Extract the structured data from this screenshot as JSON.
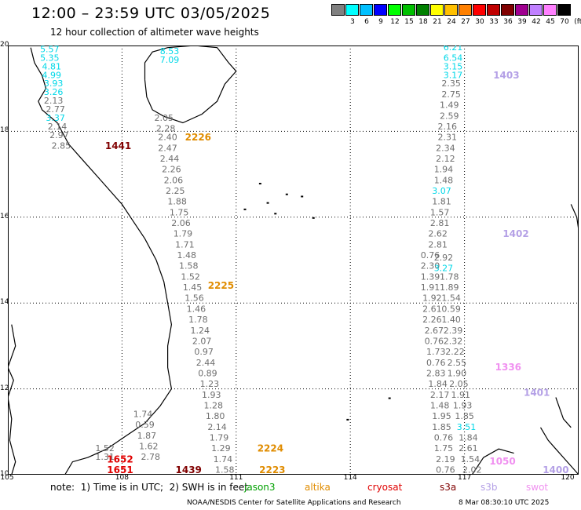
{
  "header": {
    "title": "12:00 – 23:59 UTC 03/05/2025",
    "subtitle": "12 hour collection of altimeter wave heights"
  },
  "color_scale": {
    "unit": "(ft)",
    "bins": [
      {
        "label": "",
        "color": "#808080"
      },
      {
        "label": "3",
        "color": "#00ffff"
      },
      {
        "label": "6",
        "color": "#00c0ff"
      },
      {
        "label": "9",
        "color": "#0000ff"
      },
      {
        "label": "12",
        "color": "#00ff00"
      },
      {
        "label": "15",
        "color": "#00c000"
      },
      {
        "label": "18",
        "color": "#008000"
      },
      {
        "label": "21",
        "color": "#ffff00"
      },
      {
        "label": "24",
        "color": "#ffc000"
      },
      {
        "label": "27",
        "color": "#ff8000"
      },
      {
        "label": "30",
        "color": "#ff0000"
      },
      {
        "label": "33",
        "color": "#c00000"
      },
      {
        "label": "36",
        "color": "#800000"
      },
      {
        "label": "39",
        "color": "#a00090"
      },
      {
        "label": "42",
        "color": "#c080ff"
      },
      {
        "label": "45",
        "color": "#ff80ff"
      },
      {
        "label": "70",
        "color": "#000000"
      }
    ]
  },
  "map": {
    "lat_labels": [
      "20",
      "18",
      "16",
      "14",
      "12",
      "10"
    ],
    "lon_labels": [
      "105",
      "108",
      "111",
      "114",
      "117",
      "120"
    ],
    "lat_range": [
      10,
      20
    ],
    "lon_range": [
      105,
      120
    ]
  },
  "colors": {
    "gray": "#6e6e6e",
    "cyan": "#00d8e8",
    "orange": "#e08c00",
    "darkred": "#800000",
    "red": "#e00000",
    "lavender": "#b4a0e6",
    "pink": "#f090f0",
    "green": "#00a000"
  },
  "observations": [
    {
      "lon": 106.1,
      "lat": 19.9,
      "v": "5.57",
      "c": "cyan"
    },
    {
      "lon": 106.1,
      "lat": 19.7,
      "v": "5.35",
      "c": "cyan"
    },
    {
      "lon": 106.15,
      "lat": 19.5,
      "v": "4.81",
      "c": "cyan"
    },
    {
      "lon": 106.15,
      "lat": 19.3,
      "v": "4.99",
      "c": "cyan"
    },
    {
      "lon": 106.2,
      "lat": 19.1,
      "v": "3.93",
      "c": "cyan"
    },
    {
      "lon": 106.2,
      "lat": 18.9,
      "v": "3.26",
      "c": "cyan"
    },
    {
      "lon": 106.2,
      "lat": 18.7,
      "v": "2.13",
      "c": "gray"
    },
    {
      "lon": 106.25,
      "lat": 18.5,
      "v": "2.77",
      "c": "gray"
    },
    {
      "lon": 106.25,
      "lat": 18.3,
      "v": "3.37",
      "c": "cyan"
    },
    {
      "lon": 106.3,
      "lat": 18.1,
      "v": "2.14",
      "c": "gray"
    },
    {
      "lon": 106.35,
      "lat": 17.9,
      "v": "2.97",
      "c": "gray"
    },
    {
      "lon": 106.4,
      "lat": 17.65,
      "v": "2.85",
      "c": "gray"
    },
    {
      "lon": 109.25,
      "lat": 19.85,
      "v": "8.53",
      "c": "cyan"
    },
    {
      "lon": 109.25,
      "lat": 19.65,
      "v": "7.09",
      "c": "cyan"
    },
    {
      "lon": 109.1,
      "lat": 18.3,
      "v": "2.05",
      "c": "gray"
    },
    {
      "lon": 109.15,
      "lat": 18.05,
      "v": "2.28",
      "c": "gray"
    },
    {
      "lon": 109.2,
      "lat": 17.85,
      "v": "2.40",
      "c": "gray"
    },
    {
      "lon": 109.2,
      "lat": 17.6,
      "v": "2.47",
      "c": "gray"
    },
    {
      "lon": 109.25,
      "lat": 17.35,
      "v": "2.44",
      "c": "gray"
    },
    {
      "lon": 109.3,
      "lat": 17.1,
      "v": "2.26",
      "c": "gray"
    },
    {
      "lon": 109.35,
      "lat": 16.85,
      "v": "2.06",
      "c": "gray"
    },
    {
      "lon": 109.4,
      "lat": 16.6,
      "v": "2.25",
      "c": "gray"
    },
    {
      "lon": 109.45,
      "lat": 16.35,
      "v": "1.88",
      "c": "gray"
    },
    {
      "lon": 109.5,
      "lat": 16.1,
      "v": "1.75",
      "c": "gray"
    },
    {
      "lon": 109.55,
      "lat": 15.85,
      "v": "2.06",
      "c": "gray"
    },
    {
      "lon": 109.6,
      "lat": 15.6,
      "v": "1.79",
      "c": "gray"
    },
    {
      "lon": 109.65,
      "lat": 15.35,
      "v": "1.71",
      "c": "gray"
    },
    {
      "lon": 109.7,
      "lat": 15.1,
      "v": "1.48",
      "c": "gray"
    },
    {
      "lon": 109.75,
      "lat": 14.85,
      "v": "1.58",
      "c": "gray"
    },
    {
      "lon": 109.8,
      "lat": 14.6,
      "v": "1.52",
      "c": "gray"
    },
    {
      "lon": 109.85,
      "lat": 14.35,
      "v": "1.45",
      "c": "gray"
    },
    {
      "lon": 109.9,
      "lat": 14.1,
      "v": "1.56",
      "c": "gray"
    },
    {
      "lon": 109.95,
      "lat": 13.85,
      "v": "1.46",
      "c": "gray"
    },
    {
      "lon": 110.0,
      "lat": 13.6,
      "v": "1.78",
      "c": "gray"
    },
    {
      "lon": 110.05,
      "lat": 13.35,
      "v": "1.24",
      "c": "gray"
    },
    {
      "lon": 110.1,
      "lat": 13.1,
      "v": "2.07",
      "c": "gray"
    },
    {
      "lon": 110.15,
      "lat": 12.85,
      "v": "0.97",
      "c": "gray"
    },
    {
      "lon": 110.2,
      "lat": 12.6,
      "v": "2.44",
      "c": "gray"
    },
    {
      "lon": 110.25,
      "lat": 12.35,
      "v": "0.89",
      "c": "gray"
    },
    {
      "lon": 110.3,
      "lat": 12.1,
      "v": "1.23",
      "c": "gray"
    },
    {
      "lon": 110.35,
      "lat": 11.85,
      "v": "1.93",
      "c": "gray"
    },
    {
      "lon": 110.4,
      "lat": 11.6,
      "v": "1.28",
      "c": "gray"
    },
    {
      "lon": 110.45,
      "lat": 11.35,
      "v": "1.80",
      "c": "gray"
    },
    {
      "lon": 110.5,
      "lat": 11.1,
      "v": "2.14",
      "c": "gray"
    },
    {
      "lon": 110.55,
      "lat": 10.85,
      "v": "1.79",
      "c": "gray"
    },
    {
      "lon": 110.6,
      "lat": 10.6,
      "v": "1.29",
      "c": "gray"
    },
    {
      "lon": 110.65,
      "lat": 10.35,
      "v": "1.74",
      "c": "gray"
    },
    {
      "lon": 110.7,
      "lat": 10.1,
      "v": "1.58",
      "c": "gray"
    },
    {
      "lon": 108.55,
      "lat": 11.4,
      "v": "1.74",
      "c": "gray"
    },
    {
      "lon": 108.6,
      "lat": 11.15,
      "v": "0.59",
      "c": "gray"
    },
    {
      "lon": 108.65,
      "lat": 10.9,
      "v": "1.87",
      "c": "gray"
    },
    {
      "lon": 108.7,
      "lat": 10.65,
      "v": "1.62",
      "c": "gray"
    },
    {
      "lon": 108.75,
      "lat": 10.4,
      "v": "2.78",
      "c": "gray"
    },
    {
      "lon": 107.55,
      "lat": 10.6,
      "v": "1.52",
      "c": "gray"
    },
    {
      "lon": 107.55,
      "lat": 10.4,
      "v": "1.31",
      "c": "gray"
    },
    {
      "lon": 116.7,
      "lat": 19.95,
      "v": "6.21",
      "c": "cyan"
    },
    {
      "lon": 116.7,
      "lat": 19.7,
      "v": "6.54",
      "c": "cyan"
    },
    {
      "lon": 116.7,
      "lat": 19.5,
      "v": "3.15",
      "c": "cyan"
    },
    {
      "lon": 116.7,
      "lat": 19.3,
      "v": "3.17",
      "c": "cyan"
    },
    {
      "lon": 116.65,
      "lat": 19.1,
      "v": "2.35",
      "c": "gray"
    },
    {
      "lon": 116.65,
      "lat": 18.85,
      "v": "2.75",
      "c": "gray"
    },
    {
      "lon": 116.6,
      "lat": 18.6,
      "v": "1.49",
      "c": "gray"
    },
    {
      "lon": 116.6,
      "lat": 18.35,
      "v": "2.59",
      "c": "gray"
    },
    {
      "lon": 116.55,
      "lat": 18.1,
      "v": "2.16",
      "c": "gray"
    },
    {
      "lon": 116.55,
      "lat": 17.85,
      "v": "2.31",
      "c": "gray"
    },
    {
      "lon": 116.5,
      "lat": 17.6,
      "v": "2.34",
      "c": "gray"
    },
    {
      "lon": 116.5,
      "lat": 17.35,
      "v": "2.12",
      "c": "gray"
    },
    {
      "lon": 116.45,
      "lat": 17.1,
      "v": "1.94",
      "c": "gray"
    },
    {
      "lon": 116.45,
      "lat": 16.85,
      "v": "1.48",
      "c": "gray"
    },
    {
      "lon": 116.4,
      "lat": 16.6,
      "v": "3.07",
      "c": "cyan"
    },
    {
      "lon": 116.4,
      "lat": 16.35,
      "v": "1.81",
      "c": "gray"
    },
    {
      "lon": 116.35,
      "lat": 16.1,
      "v": "1.57",
      "c": "gray"
    },
    {
      "lon": 116.35,
      "lat": 15.85,
      "v": "2.81",
      "c": "gray"
    },
    {
      "lon": 116.3,
      "lat": 15.6,
      "v": "2.62",
      "c": "gray"
    },
    {
      "lon": 116.3,
      "lat": 15.35,
      "v": "2.81",
      "c": "gray"
    },
    {
      "lon": 116.1,
      "lat": 15.1,
      "v": "0.76",
      "c": "gray"
    },
    {
      "lon": 116.45,
      "lat": 15.05,
      "v": "2.92",
      "c": "gray"
    },
    {
      "lon": 116.1,
      "lat": 14.85,
      "v": "2.30",
      "c": "gray"
    },
    {
      "lon": 116.45,
      "lat": 14.8,
      "v": "3.27",
      "c": "cyan"
    },
    {
      "lon": 116.1,
      "lat": 14.6,
      "v": "1.39",
      "c": "gray"
    },
    {
      "lon": 116.6,
      "lat": 14.6,
      "v": "1.78",
      "c": "gray"
    },
    {
      "lon": 116.1,
      "lat": 14.35,
      "v": "1.91",
      "c": "gray"
    },
    {
      "lon": 116.6,
      "lat": 14.35,
      "v": "1.89",
      "c": "gray"
    },
    {
      "lon": 116.15,
      "lat": 14.1,
      "v": "1.92",
      "c": "gray"
    },
    {
      "lon": 116.65,
      "lat": 14.1,
      "v": "1.54",
      "c": "gray"
    },
    {
      "lon": 116.15,
      "lat": 13.85,
      "v": "2.61",
      "c": "gray"
    },
    {
      "lon": 116.65,
      "lat": 13.85,
      "v": "0.59",
      "c": "gray"
    },
    {
      "lon": 116.15,
      "lat": 13.6,
      "v": "2.26",
      "c": "gray"
    },
    {
      "lon": 116.65,
      "lat": 13.6,
      "v": "1.40",
      "c": "gray"
    },
    {
      "lon": 116.2,
      "lat": 13.35,
      "v": "2.67",
      "c": "gray"
    },
    {
      "lon": 116.7,
      "lat": 13.35,
      "v": "2.39",
      "c": "gray"
    },
    {
      "lon": 116.2,
      "lat": 13.1,
      "v": "0.76",
      "c": "gray"
    },
    {
      "lon": 116.7,
      "lat": 13.1,
      "v": "2.32",
      "c": "gray"
    },
    {
      "lon": 116.25,
      "lat": 12.85,
      "v": "1.73",
      "c": "gray"
    },
    {
      "lon": 116.75,
      "lat": 12.85,
      "v": "2.22",
      "c": "gray"
    },
    {
      "lon": 116.25,
      "lat": 12.6,
      "v": "0.76",
      "c": "gray"
    },
    {
      "lon": 116.8,
      "lat": 12.6,
      "v": "2.55",
      "c": "gray"
    },
    {
      "lon": 116.25,
      "lat": 12.35,
      "v": "2.83",
      "c": "gray"
    },
    {
      "lon": 116.8,
      "lat": 12.35,
      "v": "1.90",
      "c": "gray"
    },
    {
      "lon": 116.3,
      "lat": 12.1,
      "v": "1.84",
      "c": "gray"
    },
    {
      "lon": 116.85,
      "lat": 12.1,
      "v": "2.05",
      "c": "gray"
    },
    {
      "lon": 116.35,
      "lat": 11.85,
      "v": "2.17",
      "c": "gray"
    },
    {
      "lon": 116.9,
      "lat": 11.85,
      "v": "1.91",
      "c": "gray"
    },
    {
      "lon": 116.35,
      "lat": 11.6,
      "v": "1.48",
      "c": "gray"
    },
    {
      "lon": 116.95,
      "lat": 11.6,
      "v": "1.93",
      "c": "gray"
    },
    {
      "lon": 116.4,
      "lat": 11.35,
      "v": "1.95",
      "c": "gray"
    },
    {
      "lon": 117.0,
      "lat": 11.35,
      "v": "1.85",
      "c": "gray"
    },
    {
      "lon": 116.4,
      "lat": 11.1,
      "v": "1.85",
      "c": "gray"
    },
    {
      "lon": 117.05,
      "lat": 11.1,
      "v": "3.51",
      "c": "cyan"
    },
    {
      "lon": 116.45,
      "lat": 10.85,
      "v": "0.76",
      "c": "gray"
    },
    {
      "lon": 117.1,
      "lat": 10.85,
      "v": "1.84",
      "c": "gray"
    },
    {
      "lon": 116.45,
      "lat": 10.6,
      "v": "1.75",
      "c": "gray"
    },
    {
      "lon": 117.1,
      "lat": 10.6,
      "v": "2.61",
      "c": "gray"
    },
    {
      "lon": 116.5,
      "lat": 10.35,
      "v": "2.19",
      "c": "gray"
    },
    {
      "lon": 117.15,
      "lat": 10.35,
      "v": "1.54",
      "c": "gray"
    },
    {
      "lon": 116.5,
      "lat": 10.1,
      "v": "0.76",
      "c": "gray"
    },
    {
      "lon": 117.2,
      "lat": 10.1,
      "v": "2.02",
      "c": "gray"
    }
  ],
  "revolutions": [
    {
      "lon": 107.9,
      "lat": 17.65,
      "v": "1441",
      "c": "darkred"
    },
    {
      "lon": 110.0,
      "lat": 17.85,
      "v": "2226",
      "c": "orange"
    },
    {
      "lon": 110.6,
      "lat": 14.4,
      "v": "2225",
      "c": "orange"
    },
    {
      "lon": 111.9,
      "lat": 10.6,
      "v": "2224",
      "c": "orange"
    },
    {
      "lon": 111.95,
      "lat": 10.1,
      "v": "2223",
      "c": "orange"
    },
    {
      "lon": 107.95,
      "lat": 10.35,
      "v": "1652",
      "c": "red"
    },
    {
      "lon": 107.95,
      "lat": 10.1,
      "v": "1651",
      "c": "red"
    },
    {
      "lon": 109.75,
      "lat": 10.1,
      "v": "1439",
      "c": "darkred"
    },
    {
      "lon": 118.1,
      "lat": 19.3,
      "v": "1403",
      "c": "lavender"
    },
    {
      "lon": 118.35,
      "lat": 15.6,
      "v": "1402",
      "c": "lavender"
    },
    {
      "lon": 118.15,
      "lat": 12.5,
      "v": "1336",
      "c": "pink"
    },
    {
      "lon": 118.9,
      "lat": 11.9,
      "v": "1401",
      "c": "lavender"
    },
    {
      "lon": 118.0,
      "lat": 10.3,
      "v": "1050",
      "c": "pink"
    },
    {
      "lon": 119.4,
      "lat": 10.1,
      "v": "1400",
      "c": "lavender"
    }
  ],
  "footer": {
    "note": "note:  1) Time is in UTC;  2) SWH is in feet",
    "legend": [
      {
        "name": "jason3",
        "c": "green"
      },
      {
        "name": "altika",
        "c": "orange"
      },
      {
        "name": "cryosat",
        "c": "red"
      },
      {
        "name": "s3a",
        "c": "darkred"
      },
      {
        "name": "s3b",
        "c": "lavender"
      },
      {
        "name": "swot",
        "c": "pink"
      }
    ],
    "credit": "NOAA/NESDIS Center for Satellite Applications and Research",
    "timestamp": "8 Mar 08:30:10 UTC 2025"
  }
}
